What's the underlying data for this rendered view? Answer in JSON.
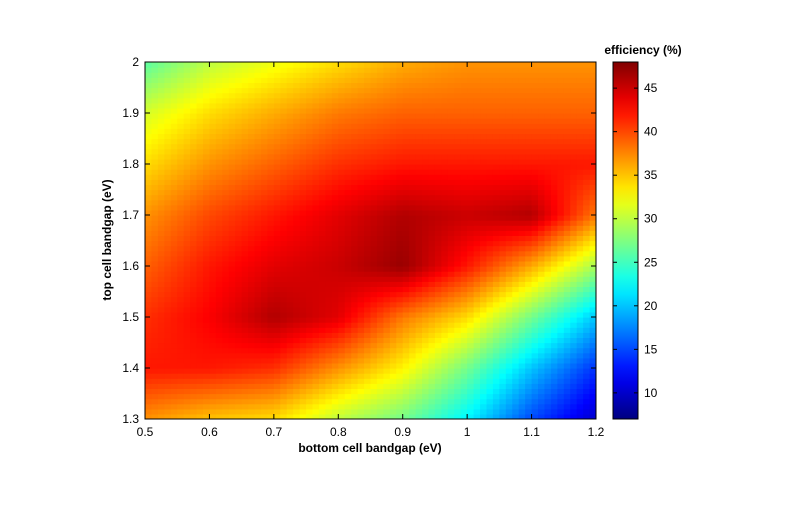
{
  "chart_data": {
    "type": "heatmap",
    "title": "",
    "xlabel": "bottom cell bandgap (eV)",
    "ylabel": "top cell bandgap (eV)",
    "colorbar_label": "efficiency (%)",
    "xlim": [
      0.5,
      1.2
    ],
    "ylim": [
      1.3,
      2.0
    ],
    "clim": [
      7,
      48
    ],
    "colormap": "jet",
    "grid": false,
    "x_ticks": [
      "0.5",
      "0.6",
      "0.7",
      "0.8",
      "0.9",
      "1",
      "1.1",
      "1.2"
    ],
    "y_ticks": [
      "1.3",
      "1.4",
      "1.5",
      "1.6",
      "1.7",
      "1.8",
      "1.9",
      "2"
    ],
    "colorbar_ticks": [
      "10",
      "15",
      "20",
      "25",
      "30",
      "35",
      "40",
      "45"
    ],
    "x": [
      0.5,
      0.6,
      0.7,
      0.8,
      0.9,
      1.0,
      1.1,
      1.2
    ],
    "y": [
      1.3,
      1.4,
      1.5,
      1.6,
      1.7,
      1.8,
      1.9,
      2.0
    ],
    "z": [
      [
        37,
        35,
        34,
        30,
        27,
        22,
        15,
        10
      ],
      [
        42,
        42,
        41,
        37,
        33,
        27,
        20,
        14
      ],
      [
        41,
        43,
        46,
        44,
        38,
        34,
        27,
        20
      ],
      [
        39,
        42,
        44,
        45,
        47,
        42,
        36,
        29
      ],
      [
        37,
        40,
        42,
        44,
        46,
        45,
        46,
        38
      ],
      [
        34,
        37,
        39,
        41,
        42,
        42,
        42,
        42
      ],
      [
        31,
        34,
        36,
        38,
        39,
        39,
        39,
        39
      ],
      [
        26,
        30,
        32,
        34,
        36,
        37,
        37,
        37
      ]
    ]
  }
}
